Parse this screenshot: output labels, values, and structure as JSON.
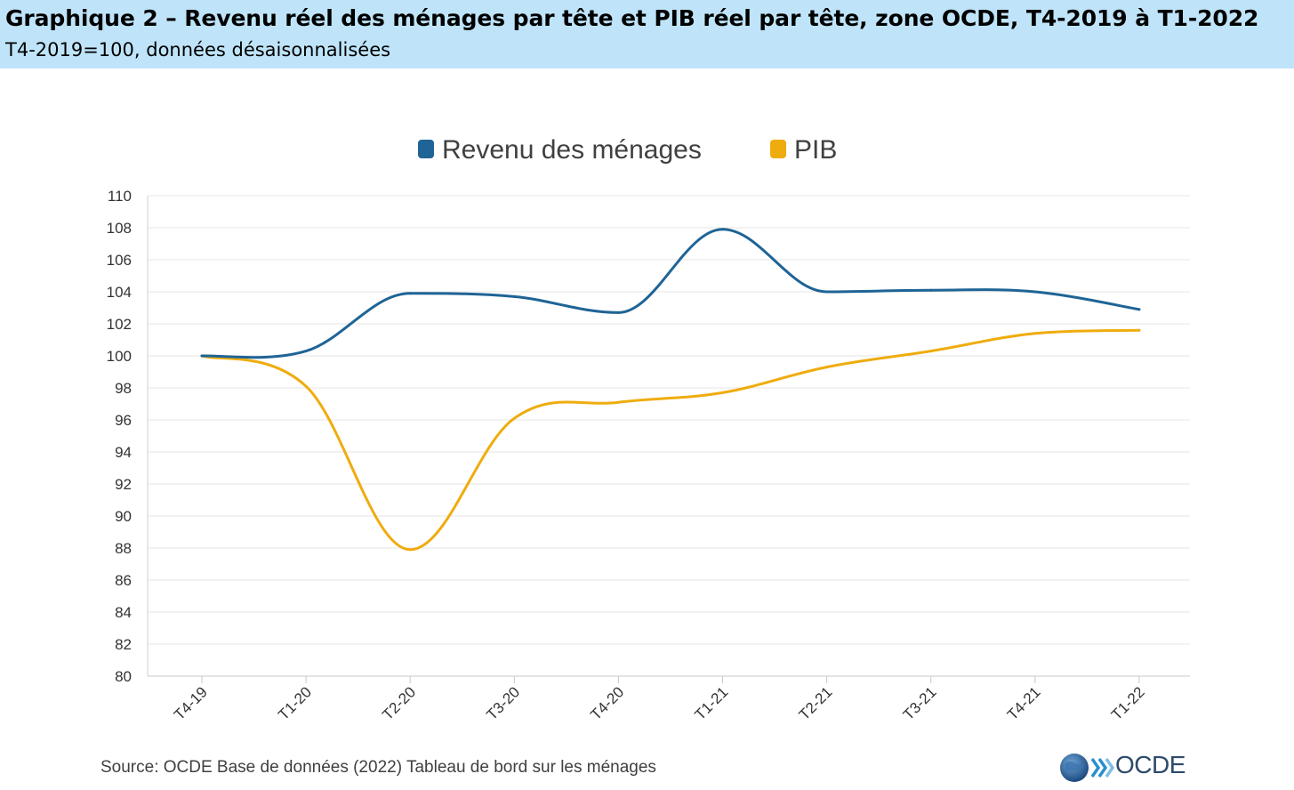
{
  "header": {
    "title": "Graphique 2 – Revenu réel des ménages par tête et PIB réel par tête, zone OCDE, T4-2019 à T1-2022",
    "subtitle": "T4-2019=100, données désaisonnalisées"
  },
  "chart_data": {
    "type": "line",
    "categories": [
      "T4-19",
      "T1-20",
      "T2-20",
      "T3-20",
      "T4-20",
      "T1-21",
      "T2-21",
      "T3-21",
      "T4-21",
      "T1-22"
    ],
    "series": [
      {
        "name": "Revenu des ménages",
        "color": "#1f6496",
        "values": [
          100.0,
          100.3,
          103.9,
          103.7,
          102.7,
          107.9,
          104.0,
          104.1,
          104.0,
          102.9
        ]
      },
      {
        "name": "PIB",
        "color": "#efac0f",
        "values": [
          100.0,
          98.1,
          87.9,
          96.1,
          97.1,
          97.7,
          99.3,
          100.3,
          101.4,
          101.6
        ]
      }
    ],
    "yticks": [
      80,
      82,
      84,
      86,
      88,
      90,
      92,
      94,
      96,
      98,
      100,
      102,
      104,
      106,
      108,
      110
    ],
    "ylim": [
      80,
      110
    ],
    "grid": true,
    "legend_position": "top-center",
    "xlabel": "",
    "ylabel": ""
  },
  "footer": {
    "source": "Source: OCDE Base de données (2022) Tableau de bord sur les ménages",
    "logo_text": "OCDE"
  }
}
